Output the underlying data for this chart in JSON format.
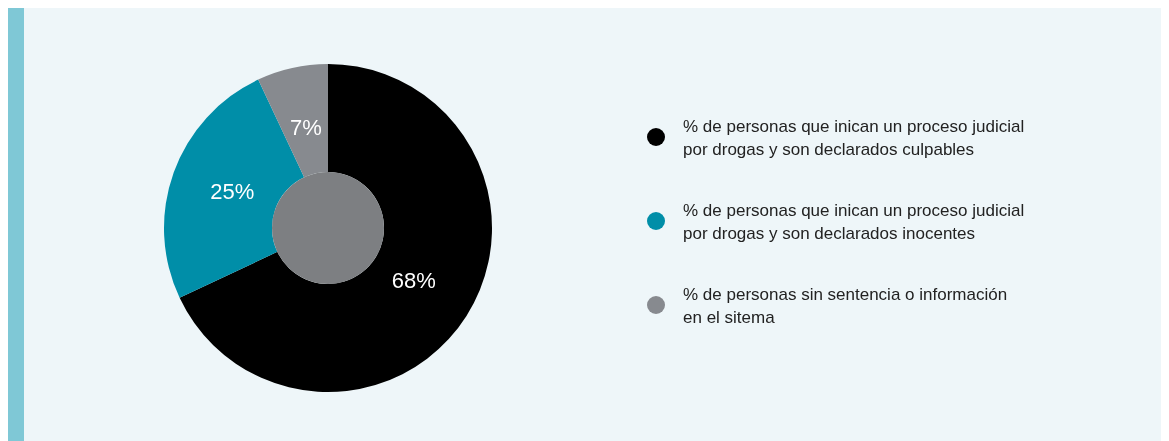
{
  "chart_data": {
    "type": "donut",
    "categories": [
      "% de personas que inican un proceso judicial\npor drogas y son declarados culpables",
      "% de personas que inican un proceso judicial\npor drogas y son declarados inocentes",
      "% de personas sin sentencia o información\nen el sitema"
    ],
    "values": [
      68,
      25,
      7
    ],
    "colors": [
      "#000000",
      "#008ea8",
      "#878a8f"
    ],
    "value_labels": [
      "68%",
      "25%",
      "7%"
    ],
    "legend": "right"
  }
}
